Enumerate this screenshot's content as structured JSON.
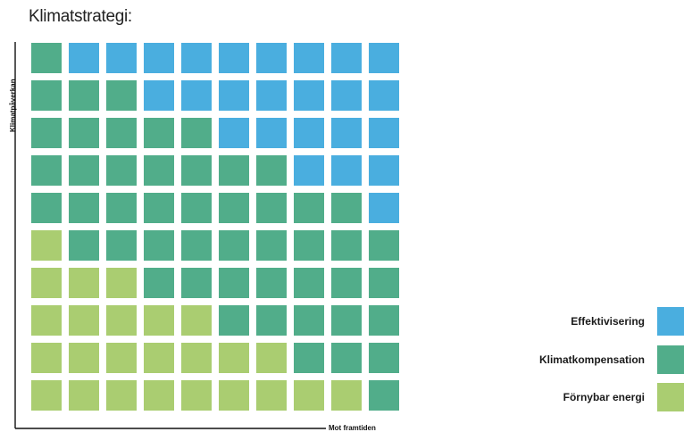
{
  "chart_data": {
    "type": "waffle",
    "title": "Klimatstrategi:",
    "ylabel": "Klimatpåverkan",
    "xlabel": "Mot framtiden",
    "rows": 10,
    "columns": 10,
    "series": [
      {
        "name": "Effektivisering",
        "color": "#4aaedf",
        "counts_per_row_top_to_bottom": [
          9,
          7,
          5,
          3,
          1,
          0,
          0,
          0,
          0,
          0
        ]
      },
      {
        "name": "Klimatkompensation",
        "color": "#51ad8a",
        "counts_per_row_top_to_bottom": [
          1,
          3,
          5,
          7,
          9,
          9,
          7,
          5,
          3,
          1
        ]
      },
      {
        "name": "Förnybar energi",
        "color": "#aacd71",
        "counts_per_row_top_to_bottom": [
          0,
          0,
          0,
          0,
          0,
          1,
          3,
          5,
          7,
          9
        ]
      }
    ],
    "legend_position": "bottom-right"
  }
}
